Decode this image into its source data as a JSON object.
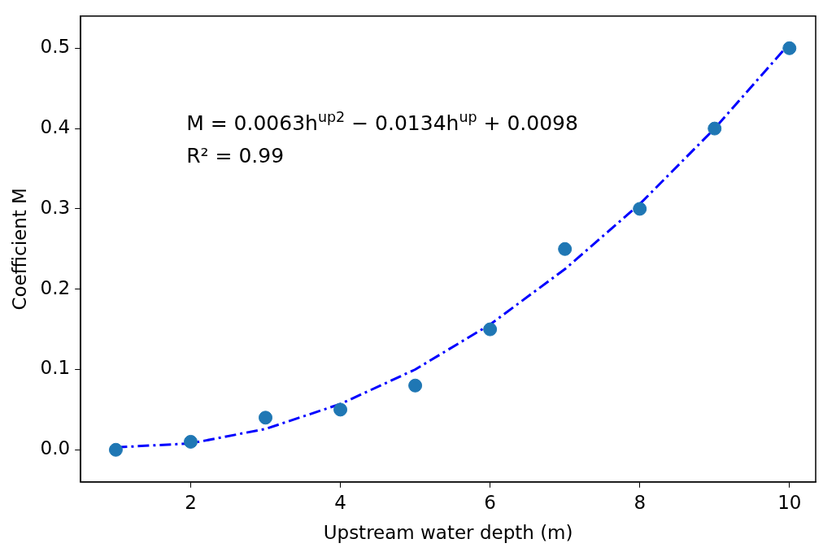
{
  "chart_data": {
    "type": "scatter",
    "xlabel": "Upstream water depth (m)",
    "ylabel": "Coefficient M",
    "annotations": [
      "M = 0.0063h$^{up2}$ − 0.0134h$^{up}$ + 0.0098",
      "R² = 0.99"
    ],
    "series": [
      {
        "type": "scatter",
        "color": "#1f77b4",
        "marker": "circle",
        "x": [
          1,
          2,
          3,
          4,
          5,
          6,
          7,
          8,
          9,
          10
        ],
        "values": [
          0,
          0.01,
          0.04,
          0.05,
          0.08,
          0.15,
          0.25,
          0.3,
          0.4,
          0.5
        ]
      },
      {
        "type": "line",
        "color": "#0000ff",
        "marker": "none",
        "line_style": "dashed",
        "x": [
          1,
          2,
          3,
          4,
          5,
          6,
          7,
          8,
          9,
          10
        ],
        "values": [
          0.003,
          0.008,
          0.026,
          0.057,
          0.1,
          0.156,
          0.225,
          0.306,
          0.4,
          0.506
        ]
      }
    ],
    "xlim": [
      0.53,
      10.35
    ],
    "xticks": [
      2,
      4,
      6,
      8,
      10
    ],
    "ylim": [
      -0.04,
      0.54
    ],
    "yticks": [
      {
        "value": 0,
        "label": "0.0"
      },
      0.1,
      0.2,
      0.3,
      0.4,
      0.5
    ],
    "grid": false,
    "legend": false
  }
}
